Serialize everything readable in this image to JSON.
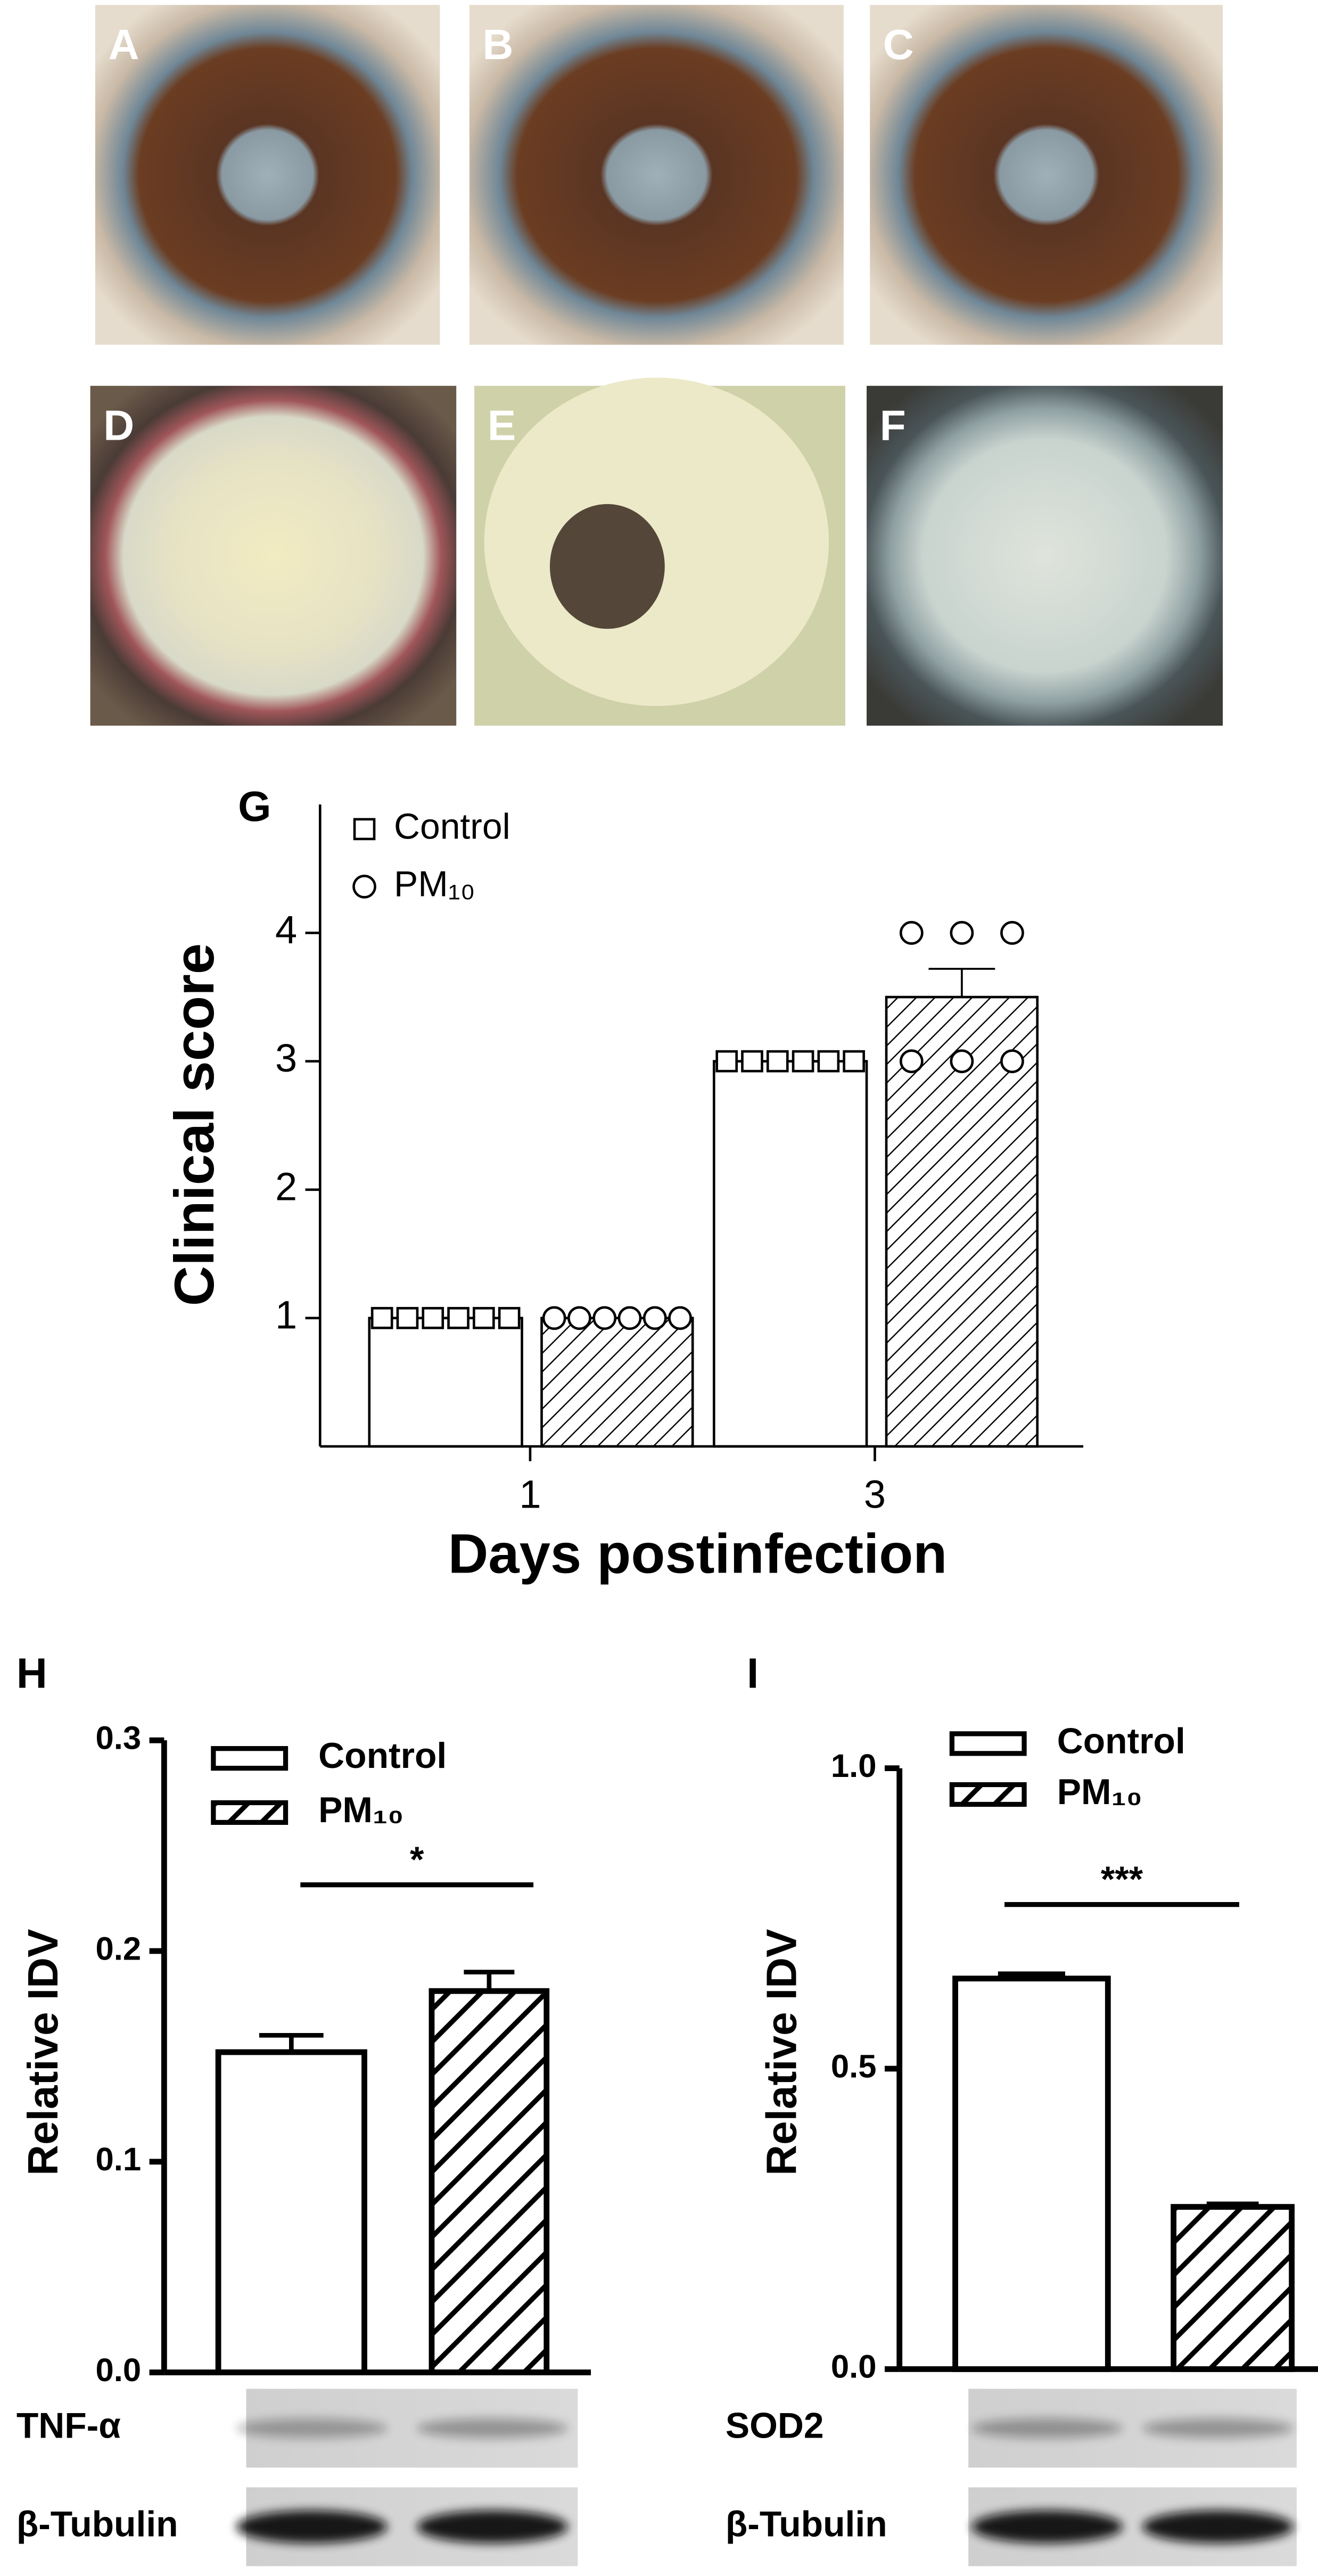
{
  "photos": {
    "labels": [
      "A",
      "B",
      "C",
      "D",
      "E",
      "F"
    ]
  },
  "chart_data": [
    {
      "type": "bar",
      "title": "G",
      "ylabel": "Clinical score",
      "xlabel": "Days postinfection",
      "categories": [
        "1",
        "3"
      ],
      "series": [
        {
          "name": "Control",
          "color": "#000000",
          "pattern": "none",
          "marker": "square",
          "values": [
            1,
            3
          ],
          "errors": [
            null,
            null
          ],
          "points": [
            [
              1,
              1,
              1,
              1,
              1,
              1
            ],
            [
              3,
              3,
              3,
              3,
              3,
              3
            ]
          ]
        },
        {
          "name": "PM₁₀",
          "color": "#000000",
          "pattern": "hatch",
          "marker": "circle",
          "values": [
            1,
            3.5
          ],
          "errors": [
            null,
            0.22
          ],
          "points": [
            [
              1,
              1,
              1,
              1,
              1,
              1
            ],
            [
              4,
              4,
              4,
              3,
              3,
              3
            ]
          ]
        }
      ],
      "ylim": [
        0,
        5
      ],
      "yticks": [
        1,
        2,
        3,
        4
      ]
    },
    {
      "type": "bar",
      "title": "H",
      "ylabel": "Relative IDV",
      "significance": "*",
      "series": [
        {
          "name": "Control",
          "color": "#000000",
          "pattern": "none",
          "values": [
            0.152
          ],
          "errors": [
            0.008
          ]
        },
        {
          "name": "PM₁₀",
          "color": "#000000",
          "pattern": "hatch",
          "values": [
            0.181
          ],
          "errors": [
            0.009
          ]
        }
      ],
      "ylim": [
        0,
        0.3
      ],
      "yticks": [
        {
          "value": 0,
          "label": "0.0"
        },
        0.1,
        0.2,
        0.3
      ],
      "blots": [
        "TNF-α",
        "β-Tubulin"
      ]
    },
    {
      "type": "bar",
      "title": "I",
      "ylabel": "Relative IDV",
      "significance": "***",
      "series": [
        {
          "name": "Control",
          "color": "#000000",
          "pattern": "none",
          "values": [
            0.65
          ],
          "errors": [
            0.008
          ]
        },
        {
          "name": "PM₁₀",
          "color": "#000000",
          "pattern": "hatch",
          "values": [
            0.27
          ],
          "errors": [
            0.005
          ]
        }
      ],
      "ylim": [
        0,
        1
      ],
      "yticks": [
        {
          "value": 0,
          "label": "0.0"
        },
        0.5,
        {
          "value": 1,
          "label": "1.0"
        }
      ],
      "blots": [
        "SOD2",
        "β-Tubulin"
      ]
    }
  ]
}
